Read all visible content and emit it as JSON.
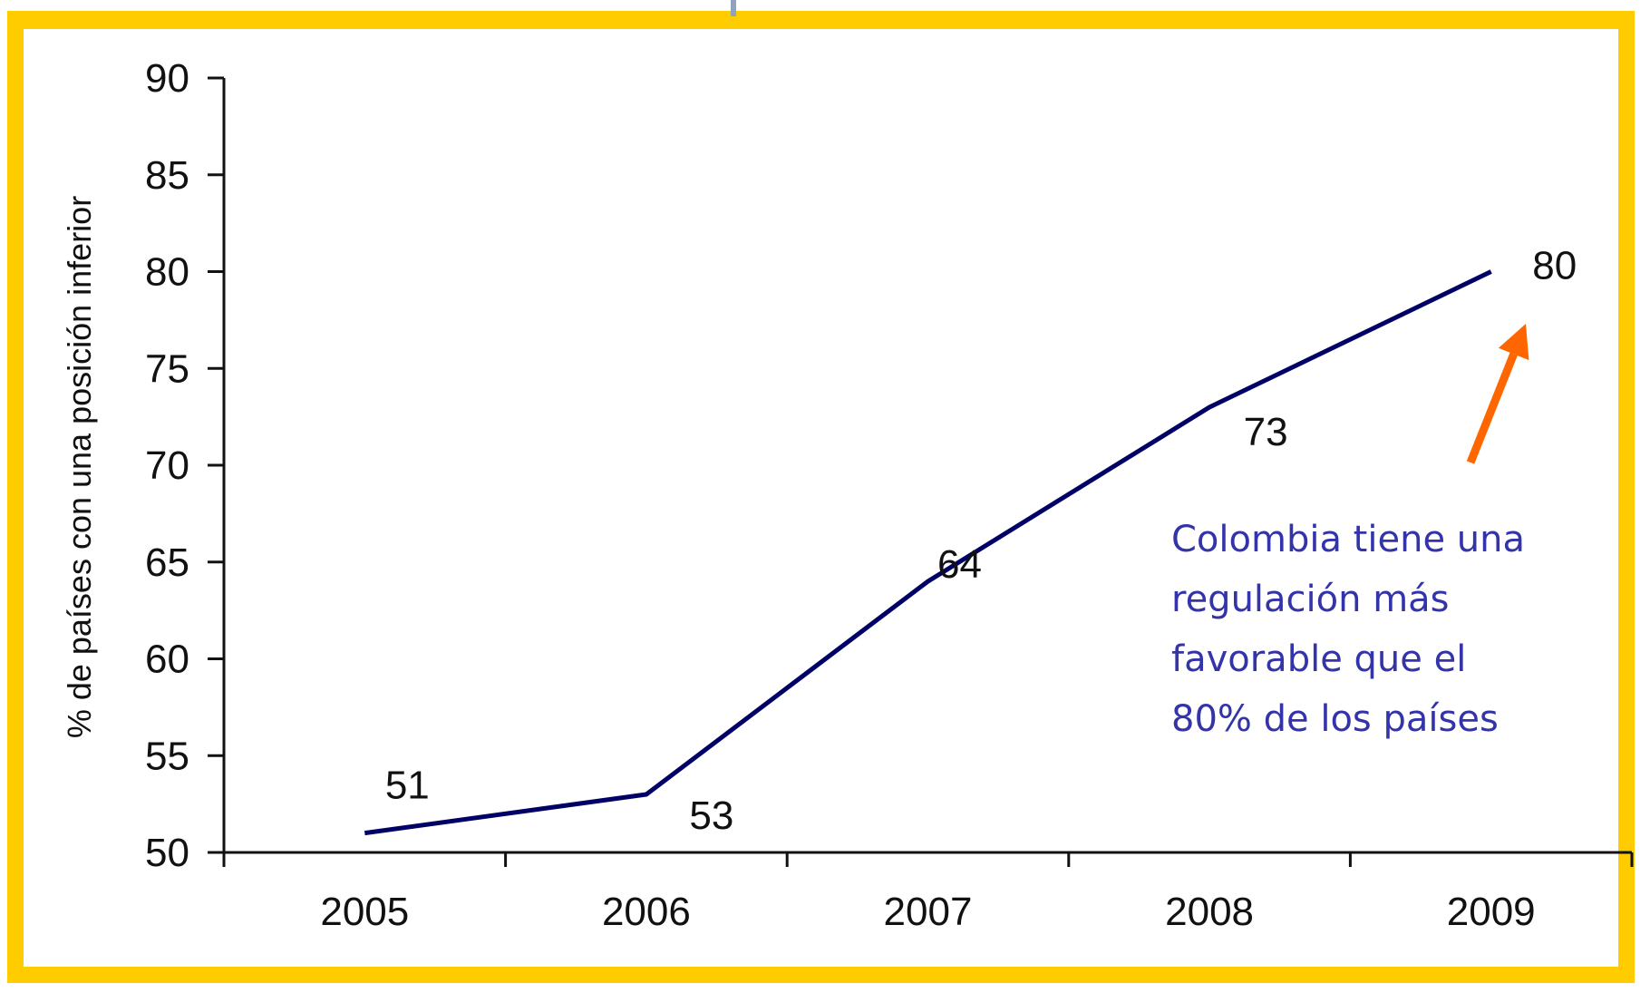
{
  "chart_data": {
    "type": "line",
    "title": "",
    "xlabel": "",
    "ylabel": "% de países con una posición inferior",
    "categories": [
      "2005",
      "2006",
      "2007",
      "2008",
      "2009"
    ],
    "series": [
      {
        "values": [
          51,
          53,
          64,
          73,
          80
        ]
      }
    ],
    "data_labels": [
      "51",
      "53",
      "64",
      "73",
      "80"
    ],
    "y_ticks": [
      "50",
      "55",
      "60",
      "65",
      "70",
      "75",
      "80",
      "85",
      "90"
    ],
    "ylim": [
      50,
      90
    ],
    "grid": false,
    "legend": "none",
    "annotation": {
      "lines": [
        "Colombia tiene una",
        "regulación más",
        "favorable que el",
        "80% de los países"
      ],
      "arrow_target": "2009"
    },
    "colors": {
      "line": "#000066",
      "annotation_text": "#3333AA",
      "arrow": "#FF6600",
      "frame": "#FFCC00"
    }
  }
}
